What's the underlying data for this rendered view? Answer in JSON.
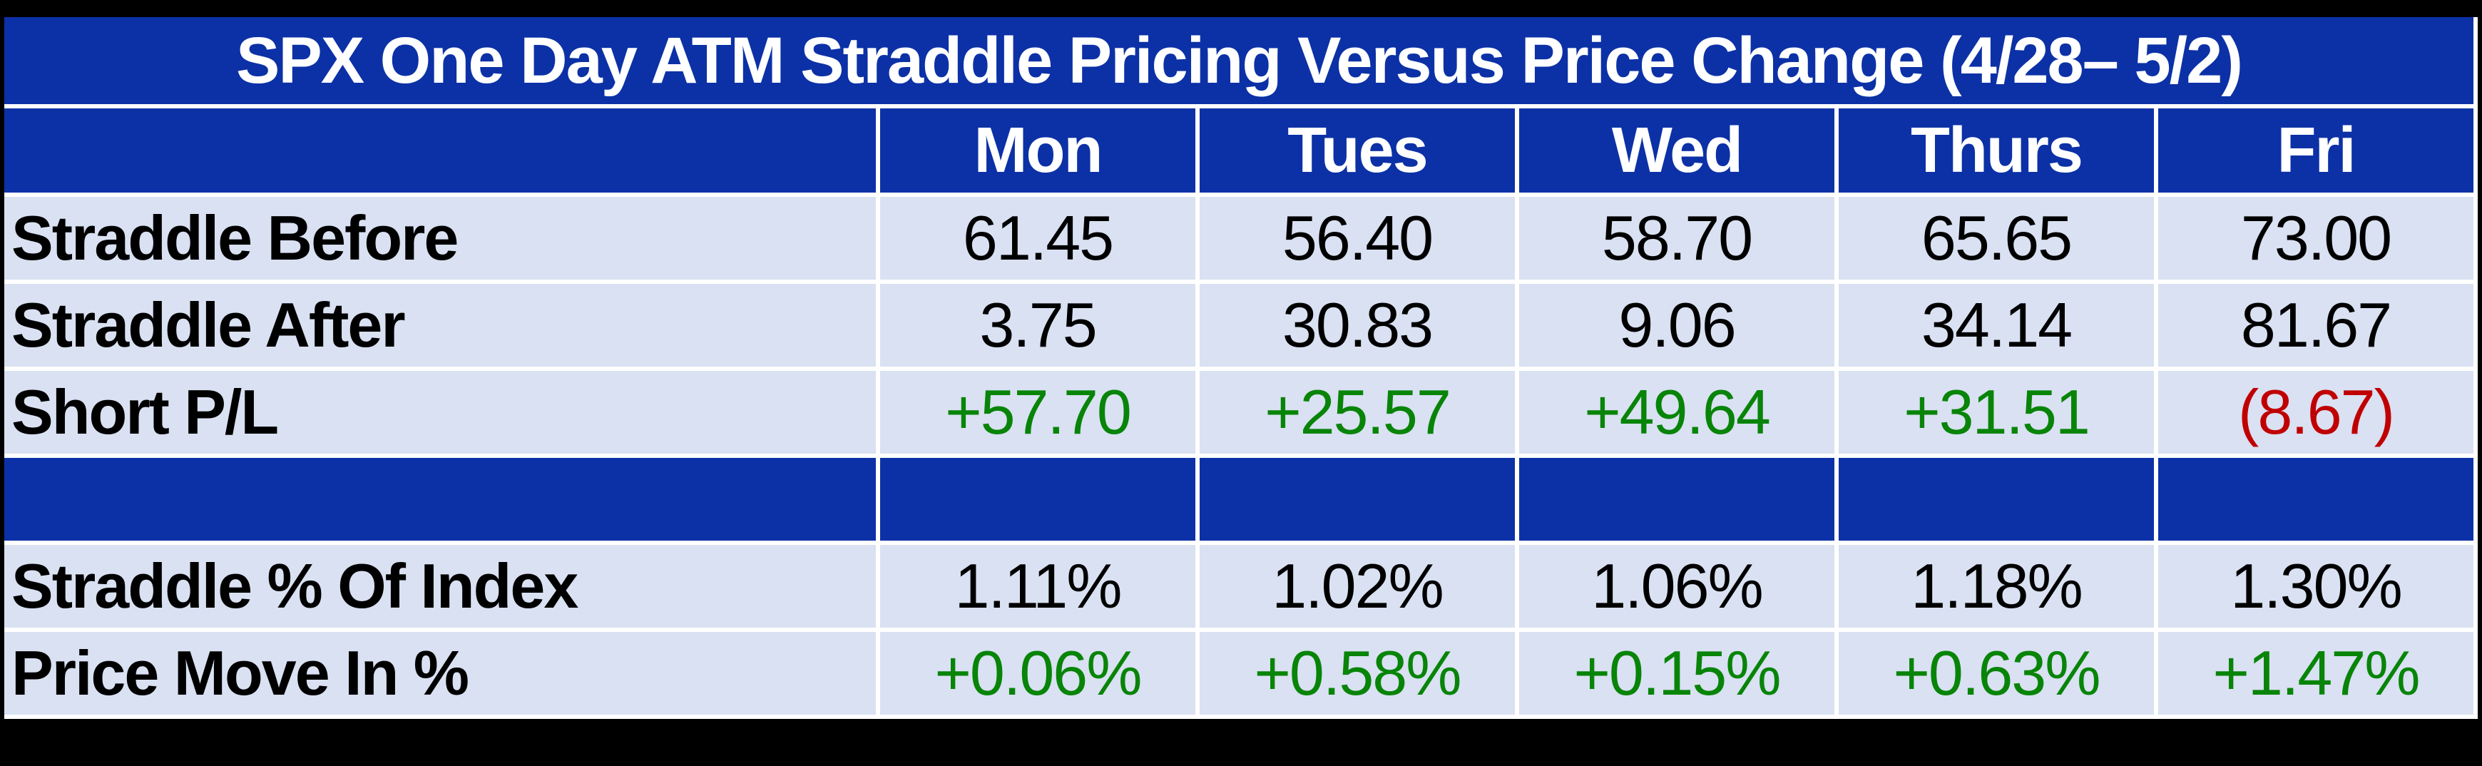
{
  "chart_data": {
    "type": "table",
    "title": "SPX One Day ATM Straddle Pricing Versus Price Change (4/28– 5/2)",
    "columns": [
      "Mon",
      "Tues",
      "Wed",
      "Thurs",
      "Fri"
    ],
    "rows": [
      {
        "label": "Straddle Before",
        "values": [
          "61.45",
          "56.40",
          "58.70",
          "65.65",
          "73.00"
        ]
      },
      {
        "label": "Straddle After",
        "values": [
          "3.75",
          "30.83",
          "9.06",
          "34.14",
          "81.67"
        ]
      },
      {
        "label": "Short P/L",
        "values": [
          "+57.70",
          "+25.57",
          "+49.64",
          "+31.51",
          "(8.67)"
        ]
      },
      {
        "label": "",
        "values": [
          "",
          "",
          "",
          "",
          ""
        ],
        "separator": true
      },
      {
        "label": "Straddle % Of Index",
        "values": [
          "1.11%",
          "1.02%",
          "1.06%",
          "1.18%",
          "1.30%"
        ]
      },
      {
        "label": "Price Move In %",
        "values": [
          "+0.06%",
          "+0.58%",
          "+0.15%",
          "+0.63%",
          "+1.47%"
        ]
      }
    ]
  },
  "colors": {
    "band_bg": "#0c31a6",
    "cell_bg": "#d9e1f2",
    "band_text": "#ffffff",
    "cell_text": "#000000",
    "positive": "#088408",
    "negative": "#c00000",
    "gridline": "#ffffff",
    "canvas_bg": "#000000"
  }
}
